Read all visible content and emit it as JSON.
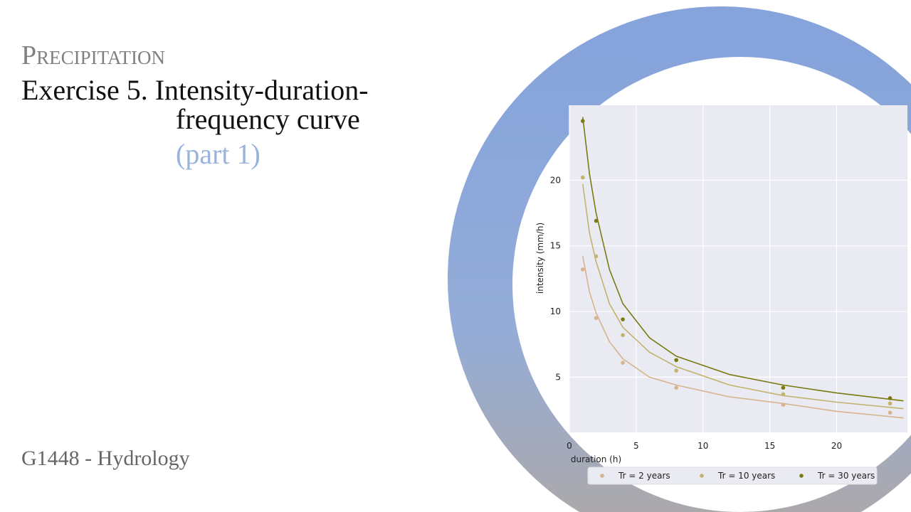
{
  "slide": {
    "section": "Precipitation",
    "title": "Exercise 5. Intensity-duration-",
    "title_line2": "frequency curve",
    "subtitle": "(part 1)",
    "footer": "G1448 - Hydrology"
  },
  "chart_data": {
    "type": "scatter",
    "xlabel": "duration (h)",
    "ylabel": "intensity (mm/h)",
    "xlim": [
      0,
      25.3
    ],
    "ylim": [
      0.8,
      25.7
    ],
    "xticks": [
      0,
      5,
      10,
      15,
      20
    ],
    "yticks": [
      5,
      10,
      15,
      20
    ],
    "grid": true,
    "background": "#eaeaf2",
    "legend": "lower center",
    "curve_x": [
      1,
      1.5,
      2,
      3,
      4,
      6,
      8,
      12,
      16,
      20,
      25
    ],
    "series": [
      {
        "name": "Tr = 2 years",
        "color": "#d6b48e",
        "x": [
          1,
          2,
          4,
          8,
          16,
          24
        ],
        "values": [
          13.2,
          9.5,
          6.1,
          4.2,
          2.9,
          2.3
        ],
        "curve": [
          14.2,
          11.5,
          9.9,
          7.7,
          6.4,
          5.0,
          4.4,
          3.5,
          3.0,
          2.4,
          1.9
        ]
      },
      {
        "name": "Tr = 10 years",
        "color": "#c2b36e",
        "x": [
          1,
          2,
          4,
          8,
          16,
          24
        ],
        "values": [
          20.2,
          14.2,
          8.2,
          5.5,
          3.7,
          3.0
        ],
        "curve": [
          19.7,
          16.0,
          13.8,
          10.6,
          8.8,
          6.9,
          5.8,
          4.4,
          3.6,
          3.1,
          2.6
        ]
      },
      {
        "name": "Tr = 30 years",
        "color": "#7a7a12",
        "x": [
          1,
          2,
          4,
          8,
          16,
          24
        ],
        "values": [
          24.5,
          16.9,
          9.4,
          6.3,
          4.2,
          3.4
        ],
        "curve": [
          24.8,
          20.5,
          17.5,
          13.2,
          10.6,
          8.0,
          6.6,
          5.2,
          4.4,
          3.8,
          3.2
        ]
      }
    ]
  }
}
